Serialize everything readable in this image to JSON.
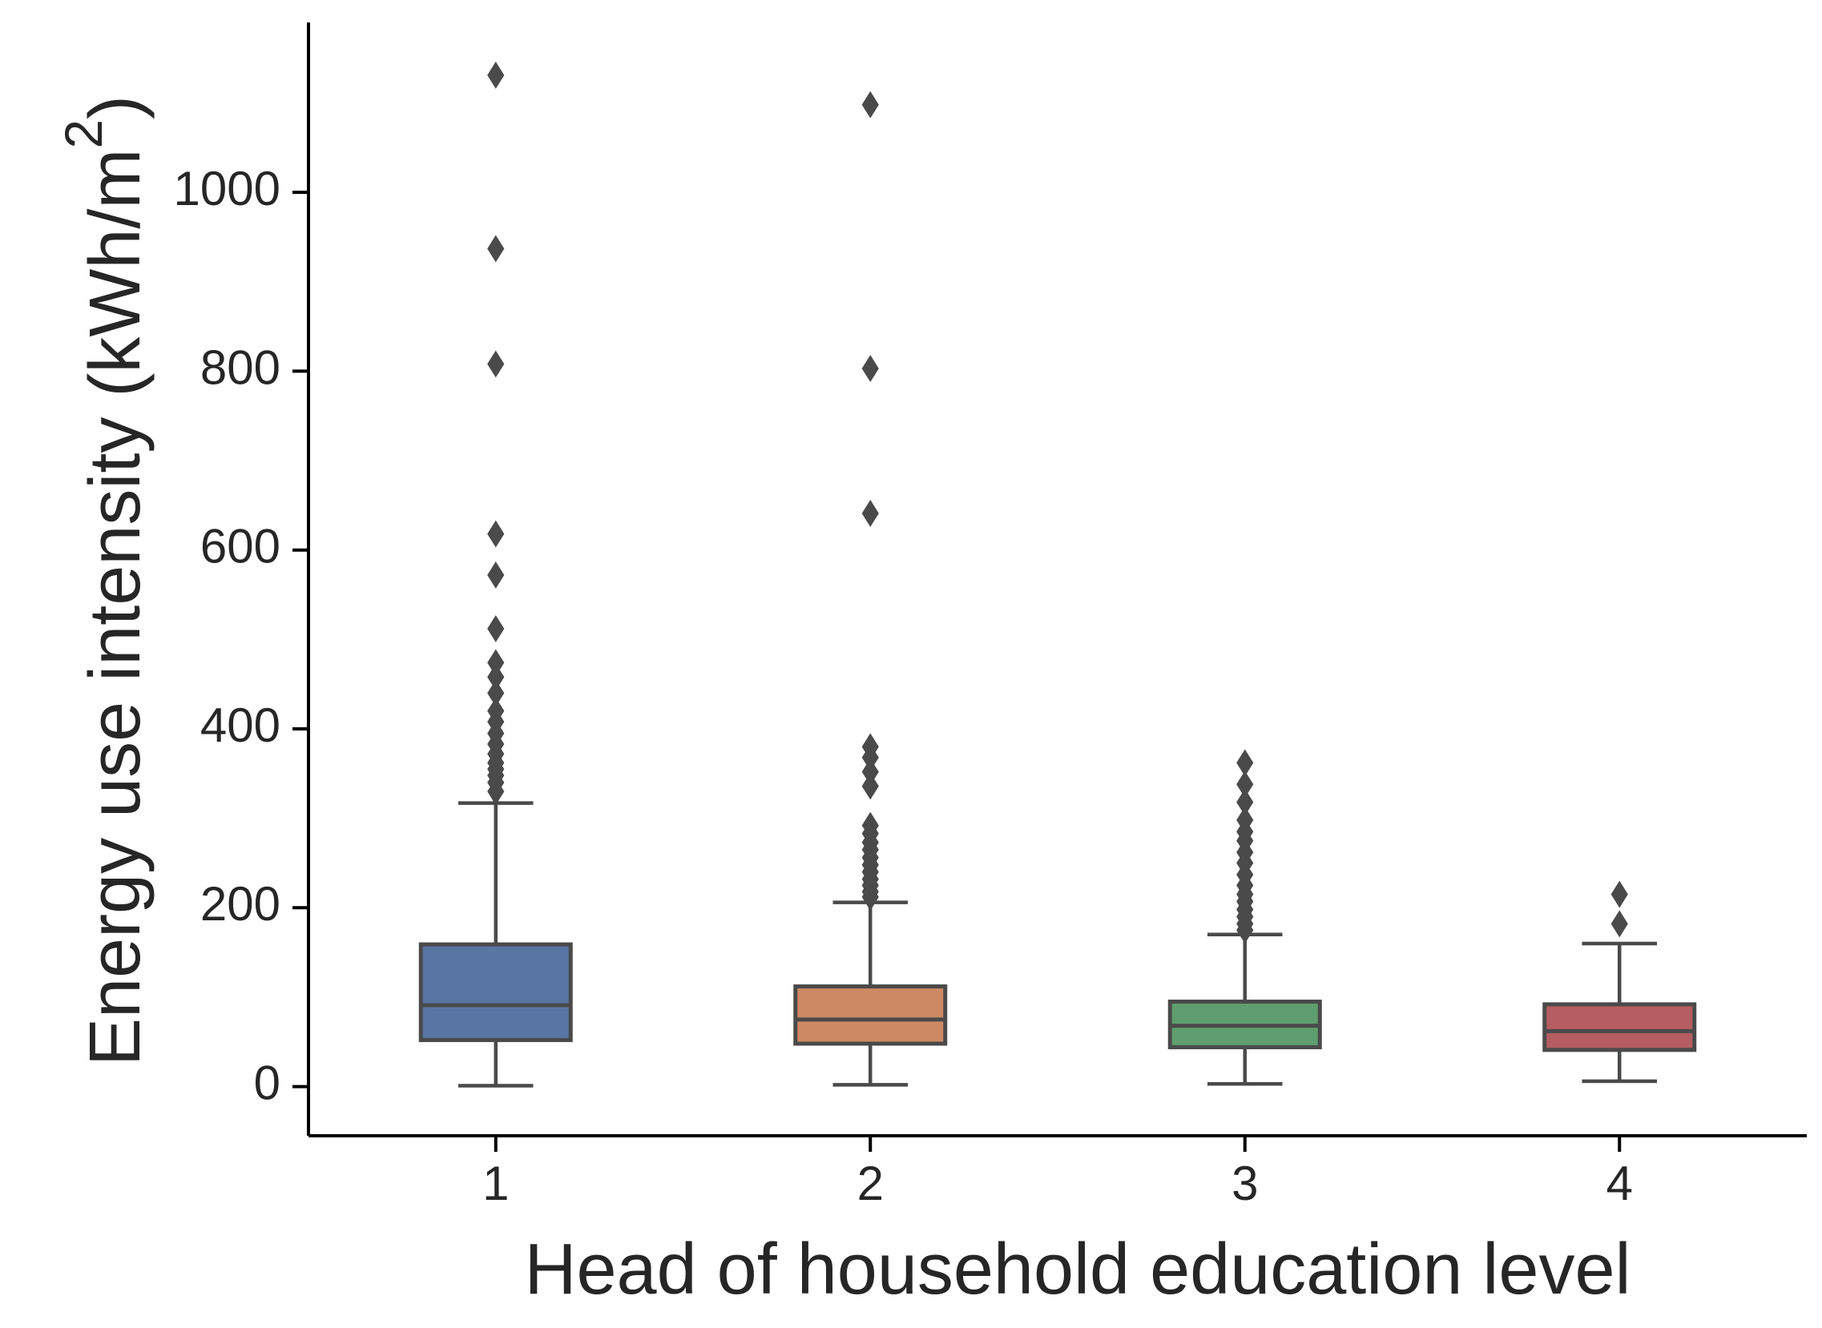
{
  "chart_data": {
    "type": "box",
    "xlabel": "Head of household education level",
    "ylabel": {
      "prefix": "Energy use intensity (kWh/m",
      "superscript": "2",
      "suffix": ")"
    },
    "ylim": [
      -55,
      1190
    ],
    "yticks": [
      0,
      200,
      400,
      600,
      800,
      1000
    ],
    "ytick_labels": [
      "0",
      "200",
      "400",
      "600",
      "800",
      "1000"
    ],
    "grid": false,
    "legend": "none",
    "categories": [
      "1",
      "2",
      "3",
      "4"
    ],
    "boxes": [
      {
        "category": "1",
        "color": "#5875a4",
        "whisker_low": 1,
        "q1": 52,
        "median": 91,
        "q3": 159,
        "whisker_high": 317,
        "outliers": [
          330,
          340,
          348,
          355,
          362,
          372,
          383,
          395,
          408,
          420,
          440,
          458,
          474,
          512,
          572,
          618,
          808,
          937,
          1131
        ]
      },
      {
        "category": "2",
        "color": "#cc8963",
        "whisker_low": 2,
        "q1": 48,
        "median": 75,
        "q3": 112,
        "whisker_high": 206,
        "outliers": [
          212,
          218,
          225,
          232,
          240,
          248,
          256,
          265,
          273,
          283,
          292,
          336,
          352,
          368,
          380,
          641,
          803,
          1098
        ]
      },
      {
        "category": "3",
        "color": "#5f9e6e",
        "whisker_low": 3,
        "q1": 44,
        "median": 68,
        "q3": 95,
        "whisker_high": 170,
        "outliers": [
          175,
          182,
          190,
          198,
          207,
          215,
          225,
          237,
          250,
          262,
          275,
          285,
          298,
          318,
          338,
          362
        ]
      },
      {
        "category": "4",
        "color": "#b55d60",
        "whisker_low": 6,
        "q1": 41,
        "median": 62,
        "q3": 92,
        "whisker_high": 160,
        "outliers": [
          182,
          215
        ]
      }
    ],
    "line_color": "#4a4a4a",
    "axis_color": "#000000"
  }
}
